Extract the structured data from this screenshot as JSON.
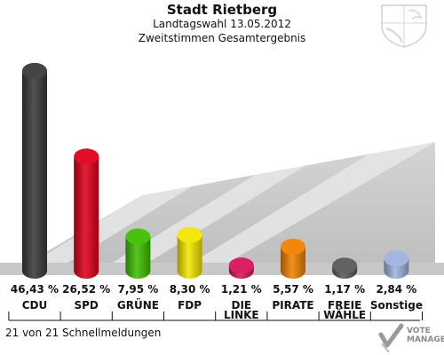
{
  "title": "Stadt Rietberg",
  "subtitle1": "Landtagswahl 13.05.2012",
  "subtitle2": "Zweitstimmen Gesamtergebnis",
  "footer": "21 von 21 Schnellmeldungen",
  "watermark": {
    "line1": "VOTE",
    "line2": "MANAGER"
  },
  "chart_data": {
    "type": "bar",
    "categories": [
      "CDU",
      "SPD",
      "GRÜNE",
      "FDP",
      "DIE LINKE",
      "PIRATE",
      "FREIE WÄHLE",
      "Sonstige"
    ],
    "category_lines": [
      [
        "CDU"
      ],
      [
        "SPD"
      ],
      [
        "GRÜNE"
      ],
      [
        "FDP"
      ],
      [
        "DIE",
        "LINKE"
      ],
      [
        "PIRATE"
      ],
      [
        "FREIE",
        "WÄHLE"
      ],
      [
        "Sonstige"
      ]
    ],
    "values": [
      46.43,
      26.52,
      7.95,
      8.3,
      1.21,
      5.57,
      1.17,
      2.84
    ],
    "value_labels": [
      "46,43 %",
      "26,52 %",
      "7,95 %",
      "8,30 %",
      "1,21 %",
      "5,57 %",
      "1,17 %",
      "2,84 %"
    ],
    "colors": [
      "#3a3a3a",
      "#e0001b",
      "#3fbf00",
      "#f3e600",
      "#d8145a",
      "#f08200",
      "#5a5a5a",
      "#9fb2de"
    ]
  }
}
